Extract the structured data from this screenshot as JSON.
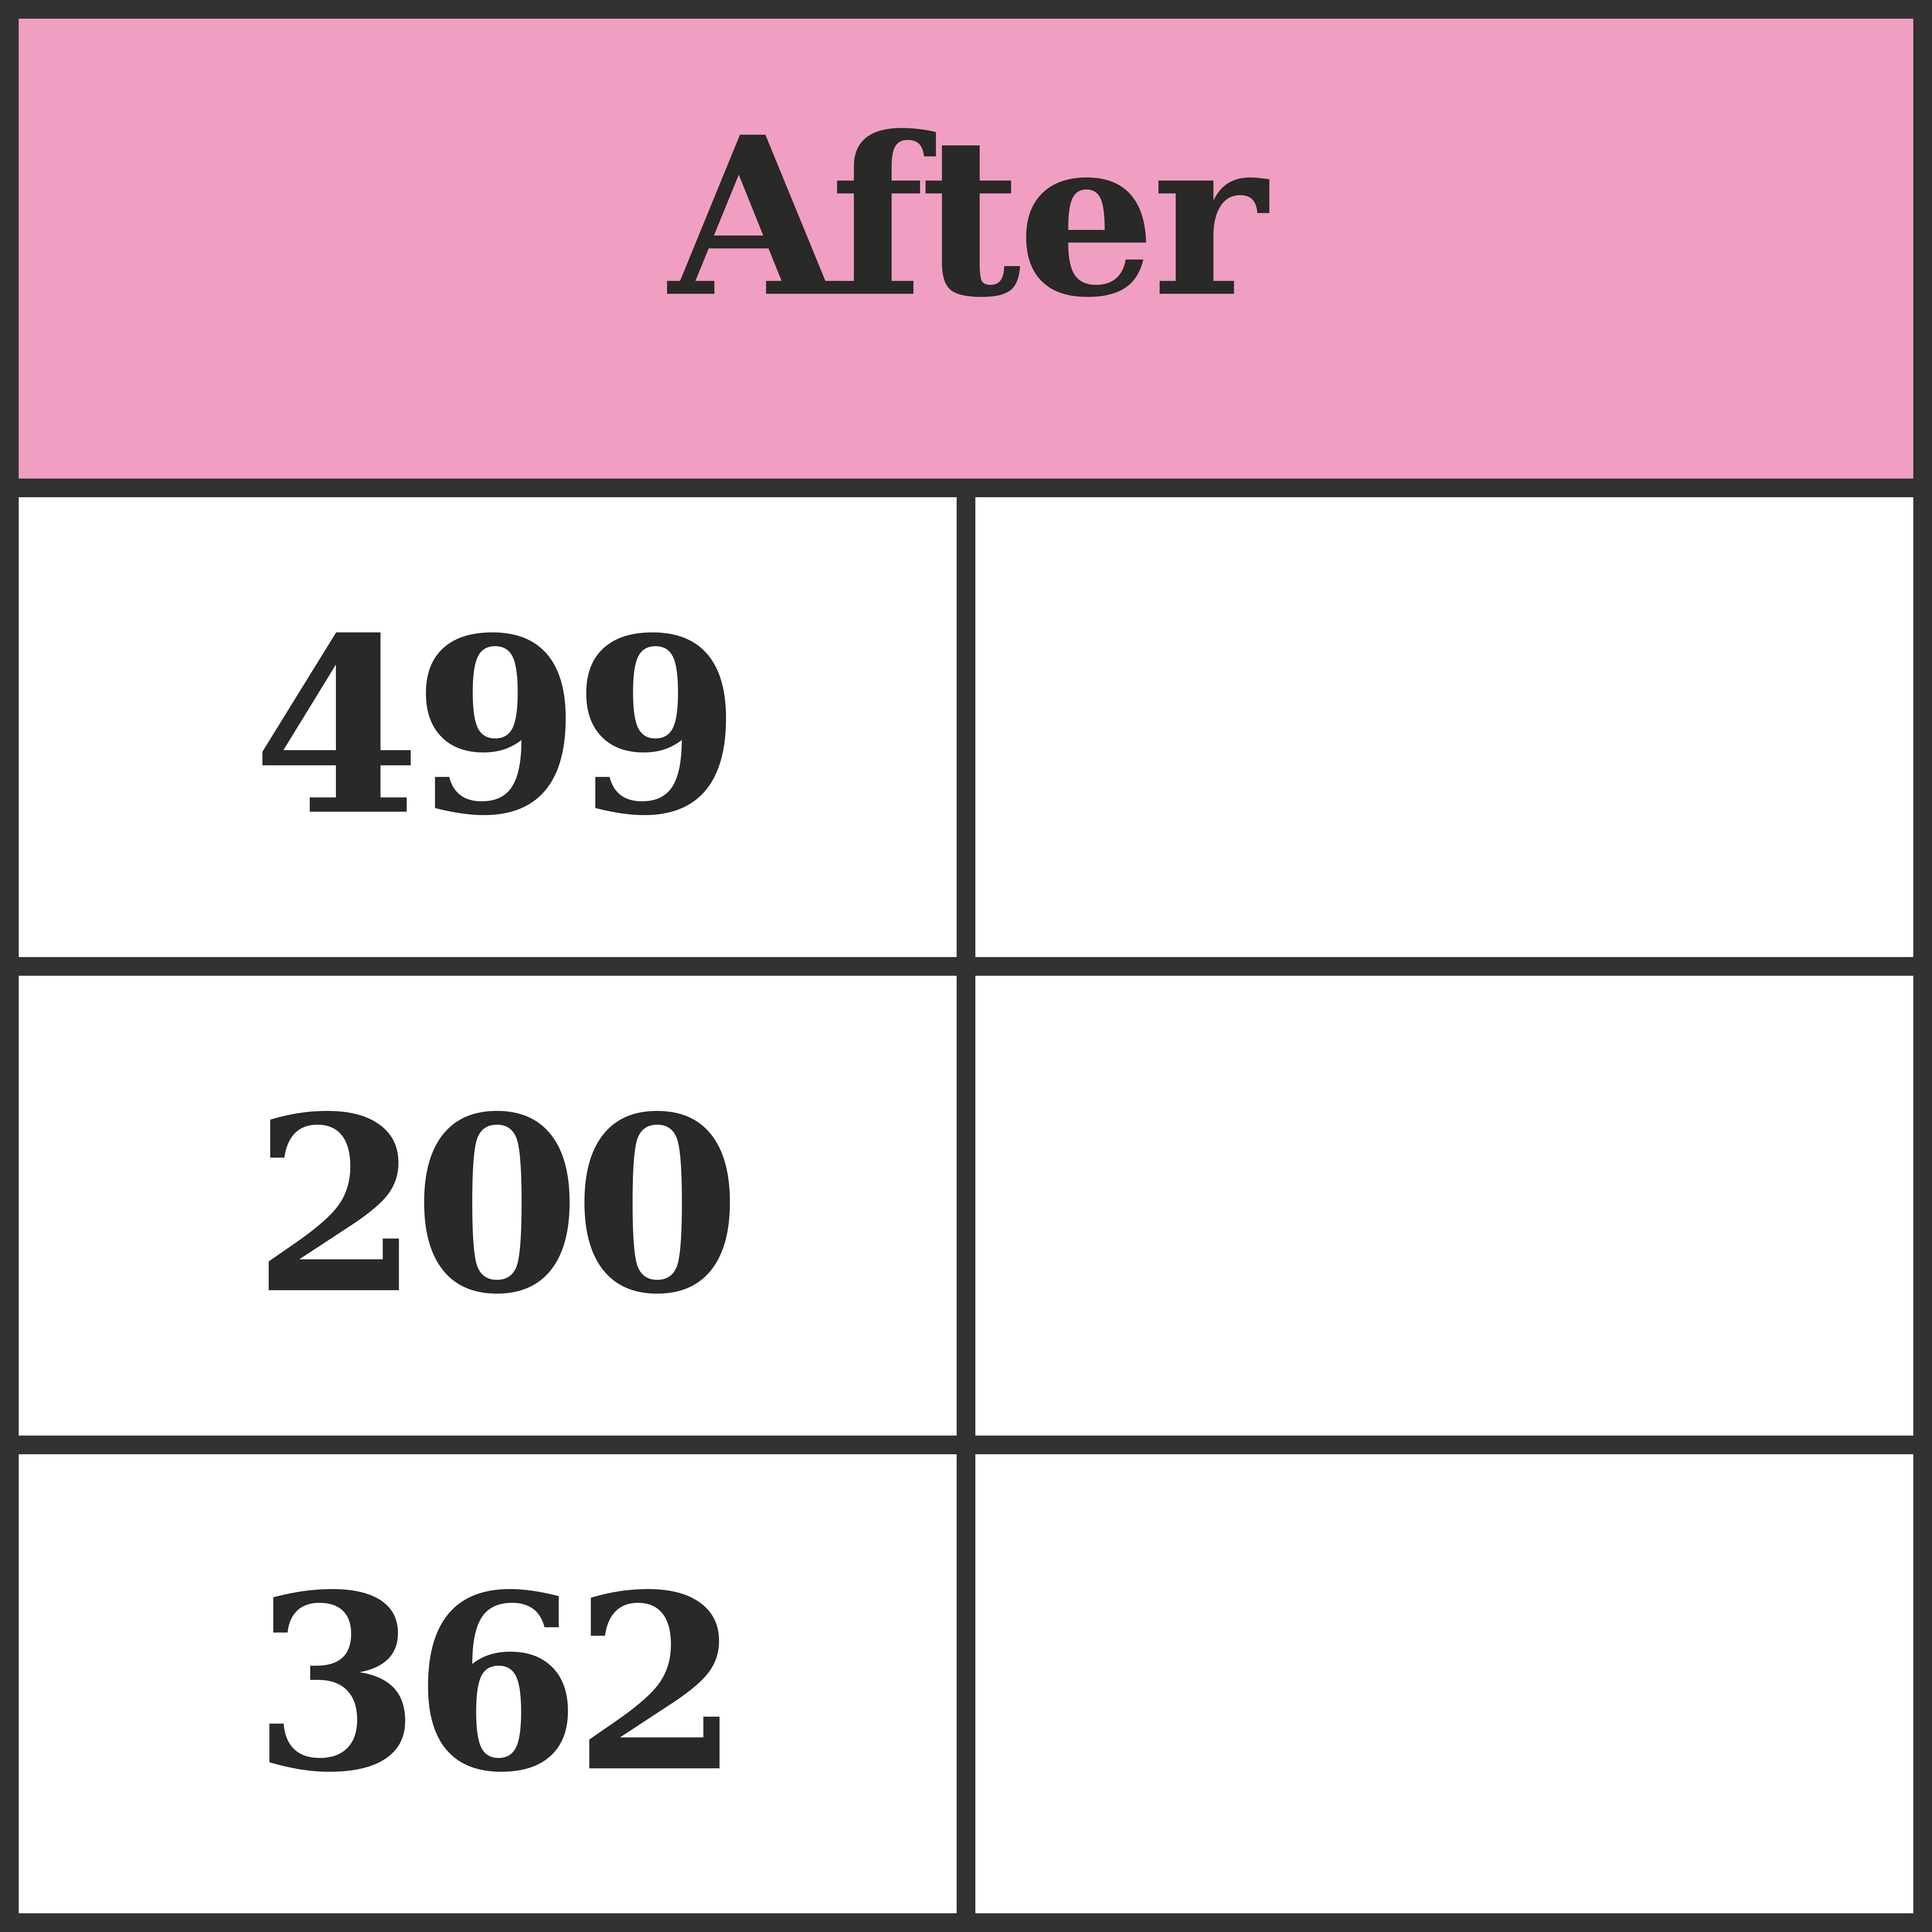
{
  "table": {
    "header": "After",
    "rows": [
      {
        "value": "499",
        "second": ""
      },
      {
        "value": "200",
        "second": ""
      },
      {
        "value": "362",
        "second": ""
      }
    ]
  },
  "colors": {
    "header_background": "#f19ec3",
    "border": "#323232",
    "text": "#292927"
  }
}
